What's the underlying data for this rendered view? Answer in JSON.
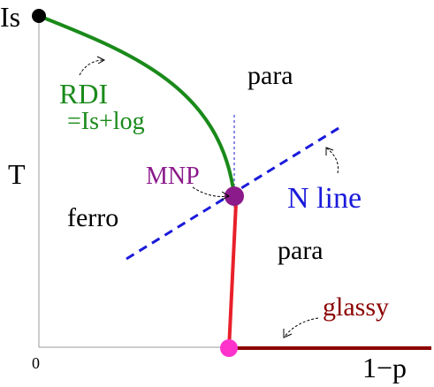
{
  "labels": {
    "is_top": "Is",
    "t_axis": "T",
    "origin": "0",
    "x_axis": "1−p",
    "para_upper": "para",
    "para_lower": "para",
    "ferro": "ferro",
    "rdi": "RDI",
    "rdi_sub": "=Is+log",
    "mnp": "MNP",
    "n_line": "N line",
    "glassy": "glassy"
  },
  "colors": {
    "axis": "#999999",
    "text": "#000000",
    "rdi_curve": "#1a8a1a",
    "ferro_para_boundary": "#e8202a",
    "n_line": "#1a1adb",
    "glassy_line": "#8b0000",
    "mnp_point": "#8b1a8b",
    "bottom_point": "#ff33cc",
    "is_point": "#000000"
  }
}
